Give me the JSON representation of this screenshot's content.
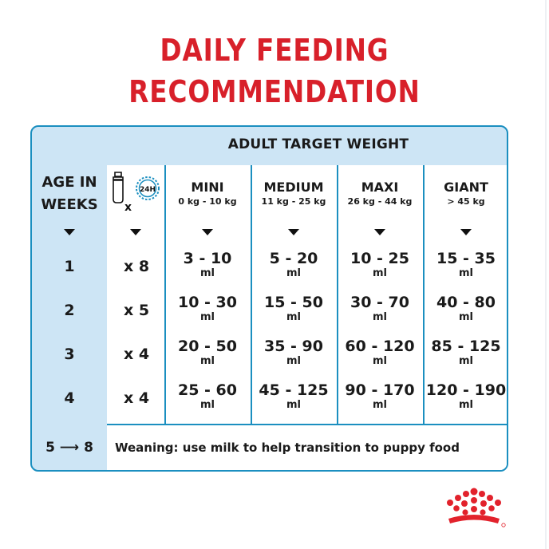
{
  "title": {
    "line1": "DAILY FEEDING",
    "line2": "RECOMMENDATION"
  },
  "table": {
    "header": "ADULT TARGET WEIGHT",
    "age_header": {
      "line1": "AGE IN",
      "line2": "WEEKS"
    },
    "feeding_icon": {
      "name": "bottle-24h-icon",
      "multiplier": "x",
      "badge": "24H"
    },
    "columns": [
      {
        "name": "MINI",
        "range": "0 kg - 10 kg"
      },
      {
        "name": "MEDIUM",
        "range": "11 kg - 25 kg"
      },
      {
        "name": "MAXI",
        "range": "26 kg - 44 kg"
      },
      {
        "name": "GIANT",
        "range": "> 45 kg"
      }
    ],
    "rows": [
      {
        "week": "1",
        "times": "x 8",
        "values": [
          "3 - 10",
          "5 - 20",
          "10 - 25",
          "15 - 35"
        ]
      },
      {
        "week": "2",
        "times": "x 5",
        "values": [
          "10 - 30",
          "15 - 50",
          "30 - 70",
          "40 - 80"
        ]
      },
      {
        "week": "3",
        "times": "x 4",
        "values": [
          "20 - 50",
          "35 - 90",
          "60 - 120",
          "85 - 125"
        ]
      },
      {
        "week": "4",
        "times": "x 4",
        "values": [
          "25 - 60",
          "45 - 125",
          "90 - 170",
          "120 - 190"
        ]
      }
    ],
    "unit": "ml",
    "weaning_weeks": "5 ⟶ 8",
    "weaning_text": "Weaning: use milk to help transition to puppy food"
  },
  "colors": {
    "title_red": "#d8202a",
    "border_blue": "#1b8fc0",
    "header_bg": "#cde5f5"
  },
  "brand": {
    "logo": "royal-crown-logo-icon"
  }
}
